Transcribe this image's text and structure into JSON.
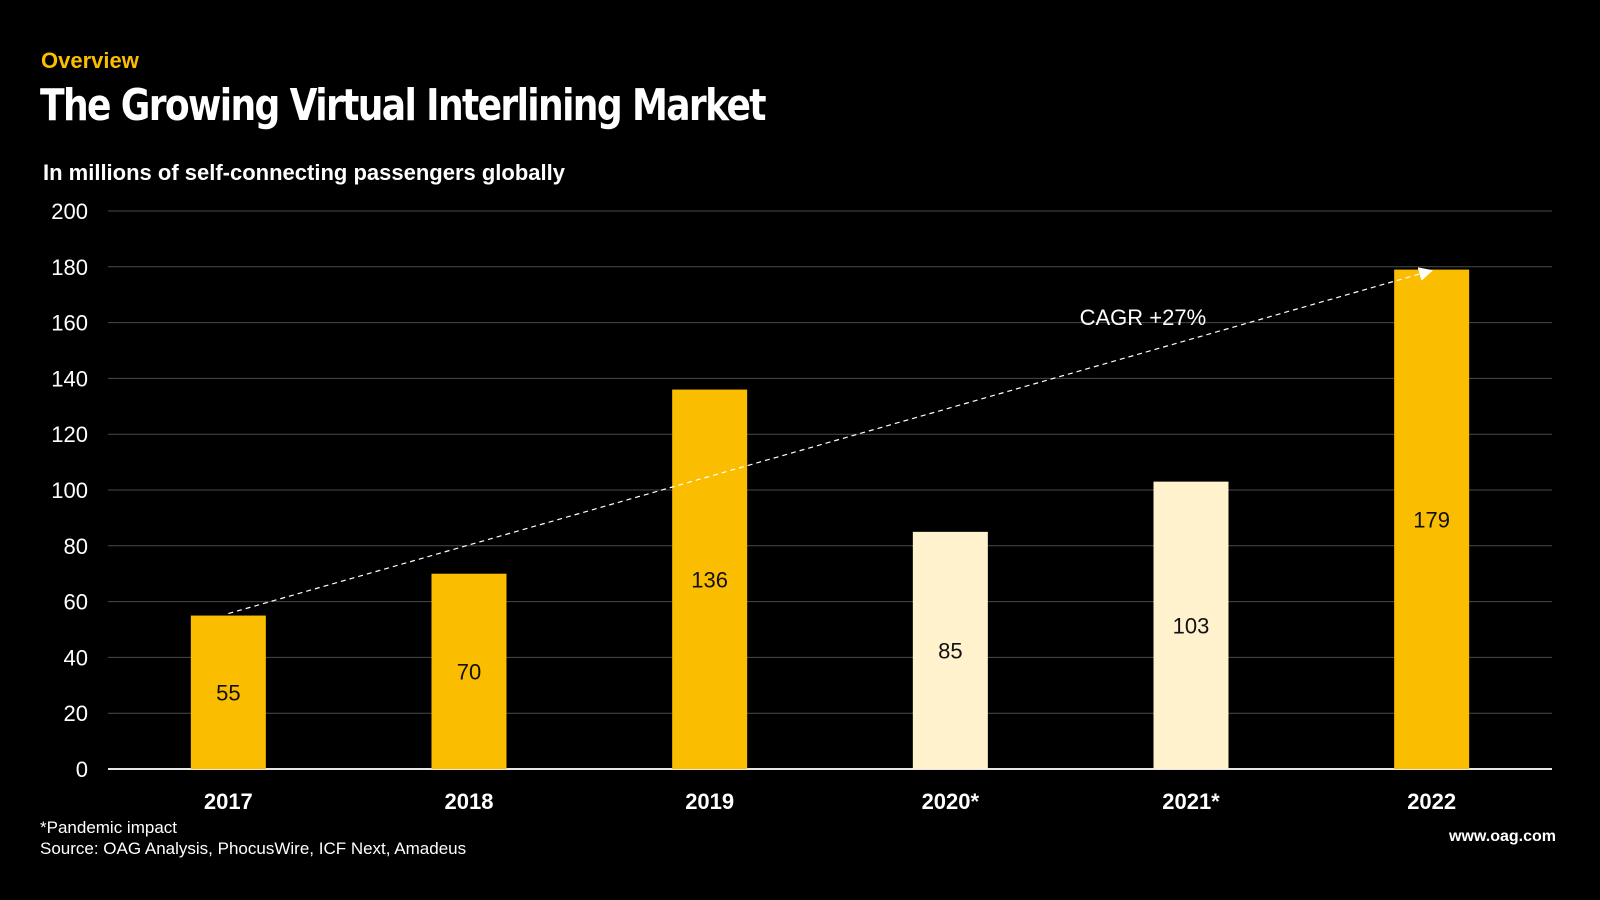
{
  "header": {
    "eyebrow": "Overview",
    "title": "The Growing Virtual Interlining Market",
    "subtitle": "In millions of self-connecting passengers globally"
  },
  "footer": {
    "note": "*Pandemic impact",
    "source": "Source: OAG Analysis, PhocusWire, ICF Next, Amadeus",
    "site": "www.oag.com"
  },
  "colors": {
    "background": "#000000",
    "bar_primary": "#fbbd00",
    "bar_pandemic": "#fff2cd",
    "text": "#ffffff"
  },
  "chart_data": {
    "type": "bar",
    "title": "The Growing Virtual Interlining Market",
    "ylabel": "In millions of self-connecting passengers globally",
    "categories": [
      "2017",
      "2018",
      "2019",
      "2020*",
      "2021*",
      "2022"
    ],
    "values": [
      55,
      70,
      136,
      85,
      103,
      179
    ],
    "data_labels": [
      "55",
      "70",
      "136",
      "85",
      "103",
      "179"
    ],
    "pandemic_impact": [
      false,
      false,
      false,
      true,
      true,
      false
    ],
    "ylim": [
      0,
      200
    ],
    "yticks": [
      0,
      20,
      40,
      60,
      80,
      100,
      120,
      140,
      160,
      180,
      200
    ],
    "grid": true,
    "annotation": {
      "text": "CAGR +27%",
      "from_category": "2017",
      "from_value": 55,
      "to_category": "2022",
      "to_value": 179,
      "style": "dashed-arrow"
    }
  }
}
